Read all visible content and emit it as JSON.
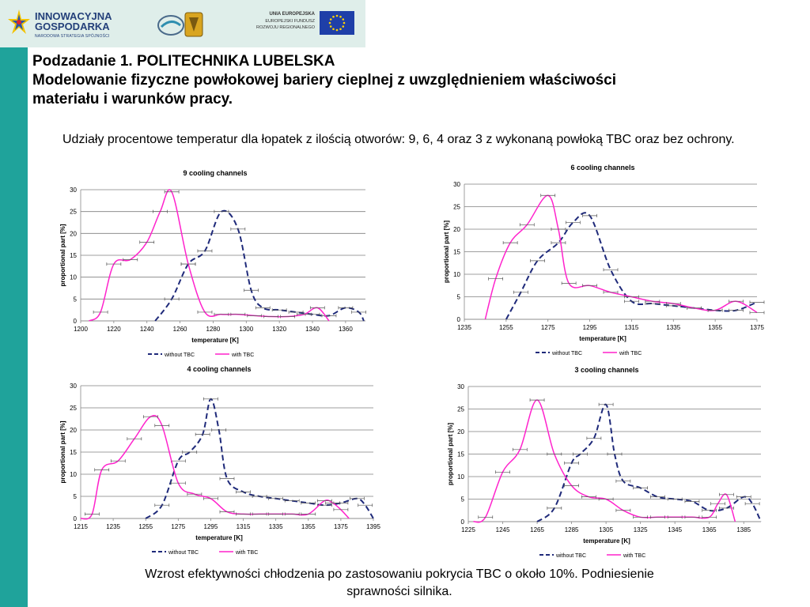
{
  "header": {
    "logo_left_line1": "INNOWACYJNA",
    "logo_left_line2": "GOSPODARKA",
    "logo_left_line3": "NARODOWA STRATEGIA SPÓJNOŚCI",
    "logo_right_line1": "UNIA EUROPEJSKA",
    "logo_right_line2": "EUROPEJSKI FUNDUSZ",
    "logo_right_line3": "ROZWOJU REGIONALNEGO"
  },
  "slide": {
    "title_line1": "Podzadanie 1. POLITECHNIKA LUBELSKA",
    "title_line2": "Modelowanie fizyczne powłokowej bariery cieplnej z uwzględnieniem właściwości",
    "title_line3": "materiału i warunków pracy.",
    "intro": "Udziały procentowe temperatur dla łopatek z ilością otworów: 9, 6, 4 oraz 3 z wykonaną powłoką TBC oraz bez ochrony.",
    "conclusion_line1": "Wzrost efektywności chłodzenia po zastosowaniu pokrycia TBC o około 10%. Podniesienie",
    "conclusion_line2": "sprawności silnika."
  },
  "colors": {
    "teal": "#1fa39b",
    "without": "#1f2a7a",
    "with": "#ff22cc"
  },
  "chart_data": [
    {
      "type": "line",
      "title": "9 cooling channels",
      "xlabel": "temperature [K]",
      "ylabel": "proportional part [%]",
      "xlim": [
        1200,
        1372
      ],
      "ylim": [
        0,
        30
      ],
      "xticks": [
        1200,
        1220,
        1240,
        1260,
        1280,
        1300,
        1320,
        1340,
        1360
      ],
      "yticks": [
        0,
        5,
        10,
        15,
        20,
        25,
        30
      ],
      "grid": true,
      "legend": "bottom",
      "series": [
        {
          "name": "without TBC",
          "style": "dashed",
          "x": [
            1245,
            1255,
            1265,
            1275,
            1285,
            1295,
            1303,
            1310,
            1320,
            1330,
            1340,
            1350,
            1360,
            1368,
            1371
          ],
          "y": [
            0,
            5,
            13,
            16,
            25,
            21,
            7,
            3,
            2.5,
            2,
            1.5,
            1.2,
            3,
            2,
            0
          ]
        },
        {
          "name": "with TBC",
          "style": "solid",
          "x": [
            1205,
            1212,
            1220,
            1230,
            1240,
            1248,
            1255,
            1265,
            1275,
            1285,
            1295,
            1305,
            1315,
            1325,
            1335,
            1343,
            1350
          ],
          "y": [
            0,
            2,
            13,
            14,
            18,
            25,
            29.5,
            13,
            2,
            1.5,
            1.5,
            1.2,
            1,
            1,
            1.5,
            3,
            0
          ]
        }
      ]
    },
    {
      "type": "line",
      "title": "6 cooling channels",
      "xlabel": "temperature [K]",
      "ylabel": "proportional part [%]",
      "xlim": [
        1235,
        1375
      ],
      "ylim": [
        0,
        30
      ],
      "xticks": [
        1235,
        1255,
        1275,
        1295,
        1315,
        1335,
        1355,
        1375
      ],
      "yticks": [
        0,
        5,
        10,
        15,
        20,
        25,
        30
      ],
      "grid": true,
      "legend": "bottom",
      "series": [
        {
          "name": "without TBC",
          "style": "dashed",
          "x": [
            1255,
            1262,
            1270,
            1280,
            1287,
            1295,
            1305,
            1315,
            1325,
            1335,
            1345,
            1355,
            1365,
            1375
          ],
          "y": [
            0,
            6,
            13,
            17,
            21.5,
            23,
            11,
            4,
            3.5,
            3,
            2.5,
            2,
            2,
            3.8
          ]
        },
        {
          "name": "with TBC",
          "style": "solid",
          "x": [
            1245,
            1250,
            1257,
            1265,
            1275,
            1280,
            1285,
            1295,
            1305,
            1315,
            1325,
            1335,
            1345,
            1355,
            1365,
            1375
          ],
          "y": [
            0,
            9,
            17,
            21,
            27.5,
            20,
            8,
            7.5,
            6,
            5,
            4,
            3.5,
            2.5,
            2,
            4,
            1.5
          ]
        }
      ]
    },
    {
      "type": "line",
      "title": "4 cooling channels",
      "xlabel": "temperature [K]",
      "ylabel": "proportional part [%]",
      "xlim": [
        1215,
        1395
      ],
      "ylim": [
        0,
        30
      ],
      "xticks": [
        1215,
        1235,
        1255,
        1275,
        1295,
        1315,
        1335,
        1355,
        1375,
        1395
      ],
      "yticks": [
        0,
        5,
        10,
        15,
        20,
        25,
        30
      ],
      "grid": true,
      "legend": "bottom",
      "series": [
        {
          "name": "without TBC",
          "style": "dashed",
          "x": [
            1255,
            1265,
            1275,
            1282,
            1290,
            1295,
            1300,
            1305,
            1315,
            1325,
            1335,
            1345,
            1355,
            1365,
            1375,
            1385,
            1390,
            1395
          ],
          "y": [
            0,
            3,
            13,
            15,
            19,
            27,
            20,
            9,
            6,
            5,
            4.5,
            4,
            3.5,
            3,
            3.5,
            4.5,
            3,
            0
          ]
        },
        {
          "name": "with TBC",
          "style": "solid",
          "x": [
            1215,
            1222,
            1228,
            1238,
            1248,
            1258,
            1265,
            1275,
            1285,
            1295,
            1305,
            1315,
            1325,
            1335,
            1345,
            1355,
            1365,
            1370,
            1375,
            1380
          ],
          "y": [
            0,
            1,
            11,
            13,
            18,
            23,
            21,
            8,
            5.5,
            4.5,
            1.5,
            1,
            1,
            1,
            1,
            1,
            4,
            3.5,
            2,
            0
          ]
        }
      ]
    },
    {
      "type": "line",
      "title": "3 cooling channels",
      "xlabel": "temperature [K]",
      "ylabel": "proportional part [%]",
      "xlim": [
        1225,
        1395
      ],
      "ylim": [
        0,
        30
      ],
      "xticks": [
        1225,
        1245,
        1265,
        1285,
        1305,
        1325,
        1345,
        1365,
        1385
      ],
      "yticks": [
        0,
        5,
        10,
        15,
        20,
        25,
        30
      ],
      "grid": true,
      "legend": "bottom",
      "series": [
        {
          "name": "without TBC",
          "style": "dashed",
          "x": [
            1265,
            1275,
            1285,
            1290,
            1298,
            1305,
            1310,
            1315,
            1325,
            1335,
            1345,
            1355,
            1365,
            1375,
            1385,
            1390,
            1395
          ],
          "y": [
            0,
            3,
            13,
            15,
            18.5,
            26,
            15,
            9,
            7.5,
            5.5,
            5,
            4.5,
            2.5,
            3,
            5.5,
            4,
            0
          ]
        },
        {
          "name": "with TBC",
          "style": "solid",
          "x": [
            1228,
            1235,
            1245,
            1255,
            1265,
            1275,
            1285,
            1295,
            1305,
            1315,
            1325,
            1335,
            1345,
            1355,
            1365,
            1370,
            1375,
            1380
          ],
          "y": [
            0,
            1,
            11,
            16,
            27,
            15,
            8,
            5.5,
            5,
            2.5,
            1,
            1,
            1,
            1,
            1,
            4,
            6,
            0
          ]
        }
      ]
    }
  ]
}
